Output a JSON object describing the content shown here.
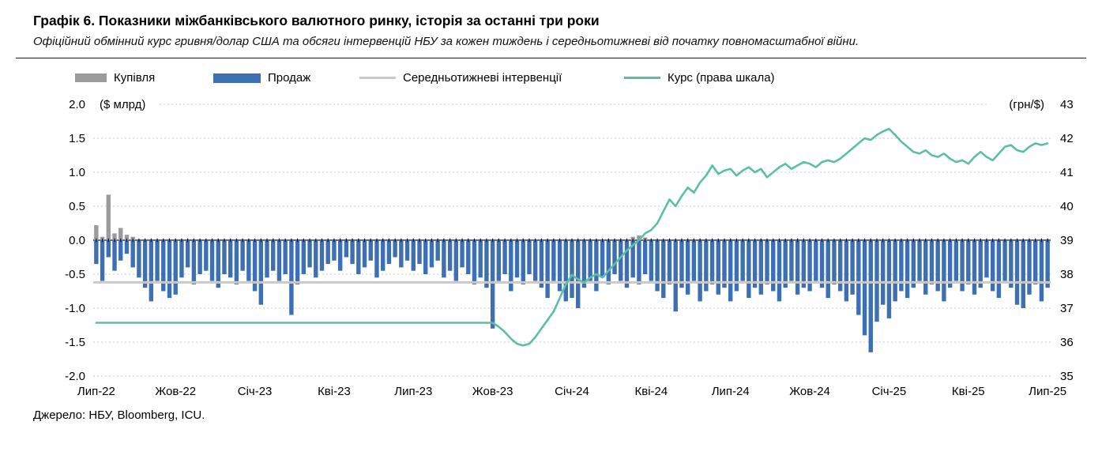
{
  "header": {
    "title": "Графік 6. Показники міжбанківського валютного ринку, історія за останні три роки",
    "subtitle": "Офіційний обмінний курс гривня/долар США та обсяги інтервенцій НБУ за кожен тиждень і середньотижневі від початку повномасштабної війни."
  },
  "legend": [
    {
      "label": "Купівля",
      "type": "bar",
      "color": "#9b9b9b"
    },
    {
      "label": "Продаж",
      "type": "bar",
      "color": "#3c6fb4"
    },
    {
      "label": "Середньотижневі інтервенції",
      "type": "line",
      "color": "#c9c9c9"
    },
    {
      "label": "Курс (права шкала)",
      "type": "line",
      "color": "#5cc0a0"
    }
  ],
  "source": "Джерело: НБУ, Bloomberg, ICU.",
  "chart_data": {
    "type": "bar",
    "subtype": "weekly bars with two overlay lines (combo chart)",
    "title": "Графік 6. Показники міжбанківського валютного ринку, історія за останні три роки",
    "grid": "horizontal-dashed",
    "legend_position": "top",
    "weeks": 157,
    "x_ticks": [
      {
        "label": "Лип-22",
        "week": 0
      },
      {
        "label": "Жов-22",
        "week": 13
      },
      {
        "label": "Січ-23",
        "week": 26
      },
      {
        "label": "Кві-23",
        "week": 39
      },
      {
        "label": "Лип-23",
        "week": 52
      },
      {
        "label": "Жов-23",
        "week": 65
      },
      {
        "label": "Січ-24",
        "week": 78
      },
      {
        "label": "Кві-24",
        "week": 91
      },
      {
        "label": "Лип-24",
        "week": 104
      },
      {
        "label": "Жов-24",
        "week": 117
      },
      {
        "label": "Січ-25",
        "week": 130
      },
      {
        "label": "Кві-25",
        "week": 143
      },
      {
        "label": "Лип-25",
        "week": 156
      }
    ],
    "left_axis": {
      "unit": "($ млрд)",
      "ticks": [
        2.0,
        1.5,
        1.0,
        0.5,
        0.0,
        -0.5,
        -1.0,
        -1.5,
        -2.0
      ],
      "range": [
        -2,
        2
      ]
    },
    "right_axis": {
      "unit": "(грн/$)",
      "ticks": [
        43,
        42,
        41,
        40,
        39,
        38,
        37,
        36,
        35
      ],
      "range": [
        35,
        43
      ]
    },
    "avg_weekly_intervention": -0.62,
    "series": {
      "purchases": {
        "name": "Купівля",
        "render": "bar",
        "axis": "left",
        "color": "#9b9b9b",
        "values_by_week": {
          "0": 0.22,
          "1": 0.05,
          "2": 0.67,
          "3": 0.1,
          "4": 0.18,
          "5": 0.08,
          "6": 0.05,
          "88": 0.05,
          "89": 0.07,
          "90": 0.04
        }
      },
      "sales": {
        "name": "Продаж",
        "render": "bar",
        "axis": "left",
        "color": "#3c6fb4",
        "values": [
          -0.35,
          -0.6,
          -0.25,
          -0.45,
          -0.3,
          -0.2,
          -0.4,
          -0.55,
          -0.7,
          -0.9,
          -0.6,
          -0.75,
          -0.85,
          -0.8,
          -0.55,
          -0.4,
          -0.65,
          -0.5,
          -0.45,
          -0.6,
          -0.7,
          -0.5,
          -0.55,
          -0.65,
          -0.45,
          -0.6,
          -0.75,
          -0.95,
          -0.55,
          -0.45,
          -0.6,
          -0.5,
          -1.1,
          -0.65,
          -0.5,
          -0.4,
          -0.55,
          -0.45,
          -0.35,
          -0.3,
          -0.45,
          -0.25,
          -0.35,
          -0.5,
          -0.4,
          -0.3,
          -0.55,
          -0.45,
          -0.35,
          -0.25,
          -0.4,
          -0.3,
          -0.45,
          -0.35,
          -0.5,
          -0.4,
          -0.3,
          -0.55,
          -0.45,
          -0.6,
          -0.4,
          -0.5,
          -0.65,
          -0.55,
          -0.7,
          -1.3,
          -0.6,
          -0.5,
          -0.75,
          -0.55,
          -0.65,
          -0.5,
          -0.6,
          -0.7,
          -0.85,
          -0.6,
          -0.75,
          -0.9,
          -0.85,
          -1.0,
          -0.7,
          -0.6,
          -0.75,
          -0.55,
          -0.65,
          -0.5,
          -0.6,
          -0.7,
          -0.55,
          -0.65,
          -0.5,
          -0.6,
          -0.75,
          -0.85,
          -0.65,
          -1.05,
          -0.7,
          -0.8,
          -0.6,
          -0.9,
          -0.75,
          -0.65,
          -0.8,
          -0.7,
          -0.9,
          -0.75,
          -0.6,
          -0.85,
          -0.7,
          -0.8,
          -0.65,
          -0.75,
          -0.9,
          -0.7,
          -0.6,
          -0.8,
          -0.7,
          -0.75,
          -0.6,
          -0.7,
          -0.85,
          -0.65,
          -0.75,
          -0.9,
          -0.8,
          -1.1,
          -1.4,
          -1.65,
          -1.2,
          -0.95,
          -1.15,
          -0.9,
          -0.75,
          -0.85,
          -0.7,
          -0.6,
          -0.8,
          -0.65,
          -0.75,
          -0.9,
          -0.7,
          -0.6,
          -0.75,
          -0.65,
          -0.8,
          -0.7,
          -0.55,
          -0.75,
          -0.85,
          -0.6,
          -0.7,
          -0.95,
          -1.0,
          -0.8,
          -0.65,
          -0.9,
          -0.7
        ]
      },
      "avg": {
        "name": "Середньотижневі інтервенції",
        "render": "line",
        "axis": "left",
        "color": "#c9c9c9",
        "value": -0.62
      },
      "rate": {
        "name": "Курс (права шкала)",
        "render": "line",
        "axis": "right",
        "color": "#5cc0a0",
        "values": [
          36.57,
          36.57,
          36.57,
          36.57,
          36.57,
          36.57,
          36.57,
          36.57,
          36.57,
          36.57,
          36.57,
          36.57,
          36.57,
          36.57,
          36.57,
          36.57,
          36.57,
          36.57,
          36.57,
          36.57,
          36.57,
          36.57,
          36.57,
          36.57,
          36.57,
          36.57,
          36.57,
          36.57,
          36.57,
          36.57,
          36.57,
          36.57,
          36.57,
          36.57,
          36.57,
          36.57,
          36.57,
          36.57,
          36.57,
          36.57,
          36.57,
          36.57,
          36.57,
          36.57,
          36.57,
          36.57,
          36.57,
          36.57,
          36.57,
          36.57,
          36.57,
          36.57,
          36.57,
          36.57,
          36.57,
          36.57,
          36.57,
          36.57,
          36.57,
          36.57,
          36.57,
          36.57,
          36.57,
          36.57,
          36.57,
          36.57,
          36.45,
          36.3,
          36.1,
          35.95,
          35.9,
          35.95,
          36.15,
          36.4,
          36.65,
          36.9,
          37.3,
          37.7,
          37.98,
          37.85,
          37.75,
          37.9,
          38.0,
          37.9,
          38.1,
          38.3,
          38.5,
          38.7,
          38.85,
          39.0,
          39.2,
          39.3,
          39.5,
          39.85,
          40.2,
          40.0,
          40.3,
          40.55,
          40.4,
          40.7,
          40.9,
          41.2,
          40.95,
          41.05,
          41.1,
          40.9,
          41.05,
          41.15,
          41.0,
          41.1,
          40.85,
          41.0,
          41.15,
          41.25,
          41.1,
          41.2,
          41.3,
          41.25,
          41.15,
          41.3,
          41.35,
          41.3,
          41.4,
          41.55,
          41.7,
          41.85,
          42.0,
          41.95,
          42.1,
          42.2,
          42.28,
          42.1,
          41.9,
          41.75,
          41.6,
          41.55,
          41.65,
          41.5,
          41.45,
          41.55,
          41.4,
          41.3,
          41.35,
          41.25,
          41.45,
          41.6,
          41.45,
          41.35,
          41.55,
          41.75,
          41.8,
          41.65,
          41.6,
          41.75,
          41.85,
          41.8,
          41.85
        ]
      }
    }
  }
}
